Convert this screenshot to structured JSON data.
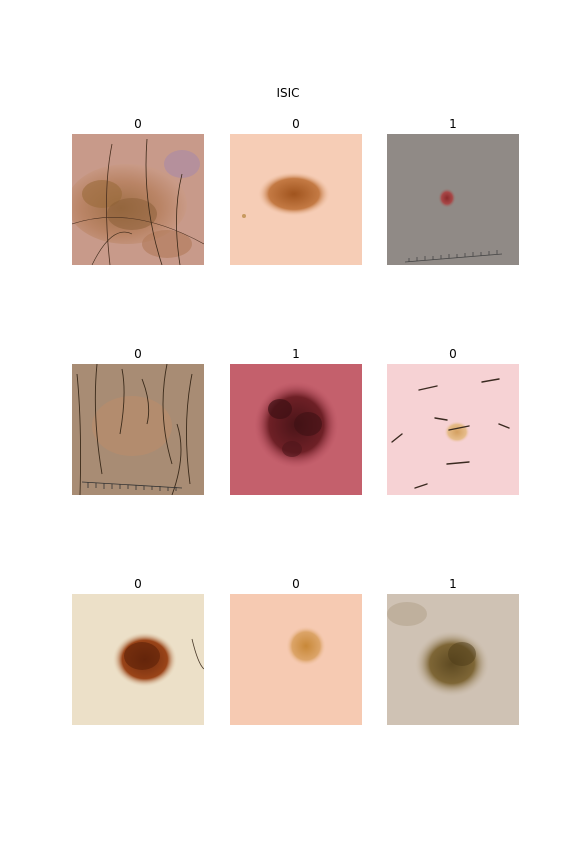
{
  "figure": {
    "title": "ISIC",
    "panels": [
      {
        "label": "0",
        "image": "lesion-hairy-mottled-brown"
      },
      {
        "label": "0",
        "image": "lesion-small-brown-oval"
      },
      {
        "label": "1",
        "image": "lesion-tiny-red-on-gray-with-ruler"
      },
      {
        "label": "0",
        "image": "lesion-faint-on-hairy-skin-with-ruler"
      },
      {
        "label": "1",
        "image": "lesion-large-dark-red-on-pink"
      },
      {
        "label": "0",
        "image": "lesion-small-tan-on-pale-hairy-skin"
      },
      {
        "label": "0",
        "image": "lesion-dark-brown-on-cream"
      },
      {
        "label": "0",
        "image": "lesion-light-tan-oval"
      },
      {
        "label": "1",
        "image": "lesion-olive-brown-irregular"
      }
    ]
  }
}
